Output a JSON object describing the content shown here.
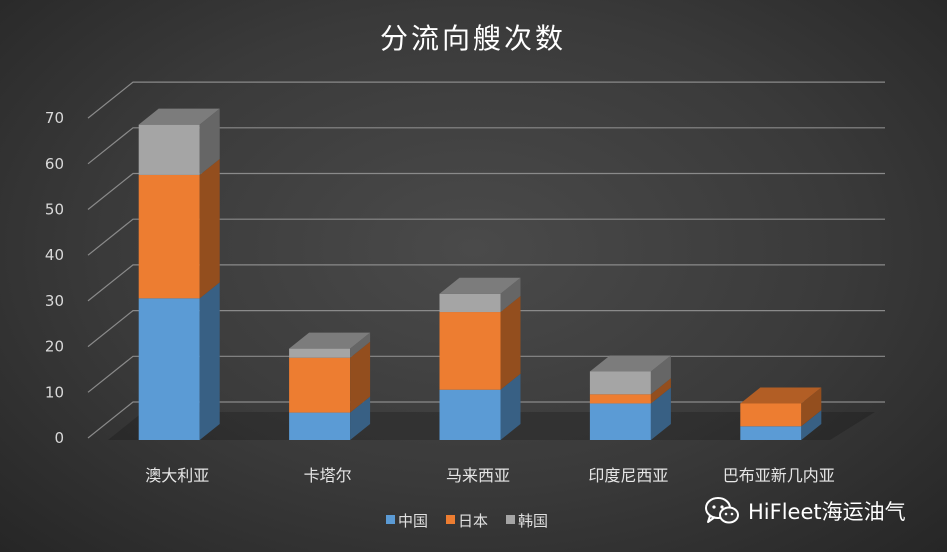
{
  "chart_data": {
    "type": "bar",
    "stacked": true,
    "three_d": true,
    "title": "分流向艘次数",
    "categories": [
      "澳大利亚",
      "卡塔尔",
      "马来西亚",
      "印度尼西亚",
      "巴布亚新几内亚"
    ],
    "series": [
      {
        "name": "中国",
        "values": [
          31,
          6,
          11,
          8,
          3
        ],
        "color": "#5b9bd5"
      },
      {
        "name": "日本",
        "values": [
          27,
          12,
          17,
          2,
          5
        ],
        "color": "#ed7d31"
      },
      {
        "name": "韩国",
        "values": [
          11,
          2,
          4,
          5,
          0
        ],
        "color": "#a5a5a5"
      }
    ],
    "yticks": [
      0,
      10,
      20,
      30,
      40,
      50,
      60,
      70
    ],
    "ylim": [
      0,
      70
    ],
    "grid": true,
    "legend_position": "bottom"
  },
  "watermark": {
    "text": "HiFleet海运油气",
    "icon": "wechat-icon"
  }
}
